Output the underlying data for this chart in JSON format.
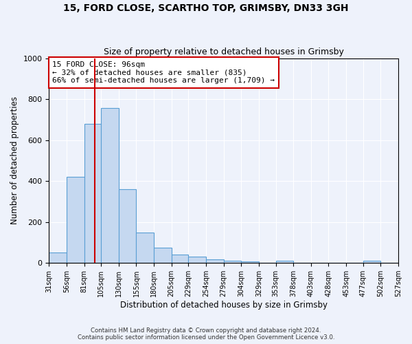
{
  "title": "15, FORD CLOSE, SCARTHO TOP, GRIMSBY, DN33 3GH",
  "subtitle": "Size of property relative to detached houses in Grimsby",
  "xlabel": "Distribution of detached houses by size in Grimsby",
  "ylabel": "Number of detached properties",
  "bar_edges": [
    31,
    56,
    81,
    105,
    130,
    155,
    180,
    205,
    229,
    254,
    279,
    304,
    329,
    353,
    378,
    403,
    428,
    453,
    477,
    502,
    527
  ],
  "bar_heights": [
    52,
    420,
    680,
    755,
    360,
    150,
    75,
    40,
    30,
    18,
    10,
    8,
    0,
    10,
    0,
    0,
    0,
    0,
    10,
    0
  ],
  "bar_color": "#c5d8f0",
  "bar_edgecolor": "#5a9fd4",
  "property_value": 96,
  "vline_color": "#cc0000",
  "annotation_text": "15 FORD CLOSE: 96sqm\n← 32% of detached houses are smaller (835)\n66% of semi-detached houses are larger (1,709) →",
  "annotation_box_edgecolor": "#cc0000",
  "annotation_box_facecolor": "#ffffff",
  "ylim": [
    0,
    1000
  ],
  "tick_labels": [
    "31sqm",
    "56sqm",
    "81sqm",
    "105sqm",
    "130sqm",
    "155sqm",
    "180sqm",
    "205sqm",
    "229sqm",
    "254sqm",
    "279sqm",
    "304sqm",
    "329sqm",
    "353sqm",
    "378sqm",
    "403sqm",
    "428sqm",
    "453sqm",
    "477sqm",
    "502sqm",
    "527sqm"
  ],
  "footer_line1": "Contains HM Land Registry data © Crown copyright and database right 2024.",
  "footer_line2": "Contains public sector information licensed under the Open Government Licence v3.0.",
  "background_color": "#eef2fb",
  "grid_color": "#ffffff"
}
